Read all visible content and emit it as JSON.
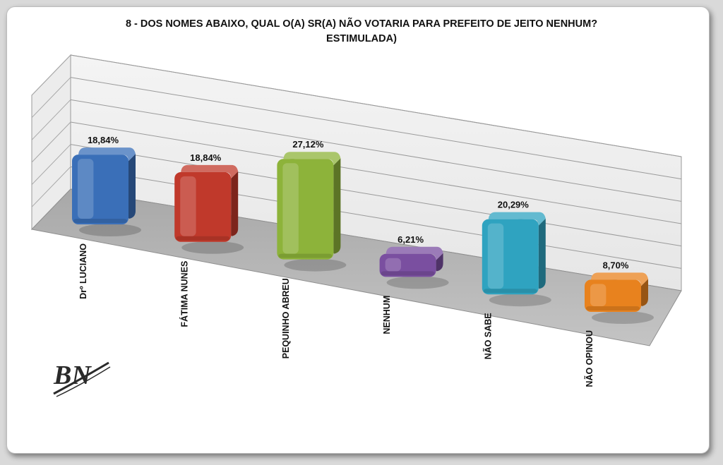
{
  "chart_data": {
    "type": "bar",
    "title": "8 -  DOS NOMES ABAIXO, QUAL O(A) SR(A) NÃO VOTARIA PARA PREFEITO DE JEITO NENHUM?",
    "subtitle": "ESTIMULADA)",
    "xlabel": "",
    "ylabel": "",
    "ylim": [
      0,
      30
    ],
    "grid": true,
    "categories": [
      "Drº LUCIANO",
      "FÁTIMA NUNES",
      "PEQUINHO ABREU",
      "NENHUM",
      "NÃO SABE",
      "NÃO OPINOU"
    ],
    "values": [
      18.84,
      18.84,
      27.12,
      6.21,
      20.29,
      8.7
    ],
    "value_labels": [
      "18,84%",
      "18,84%",
      "27,12%",
      "6,21%",
      "20,29%",
      "8,70%"
    ],
    "colors": [
      "#3a6fb8",
      "#c0392b",
      "#8db33a",
      "#7a4fa0",
      "#2fa3c0",
      "#e8821e"
    ]
  },
  "logo": {
    "text": "BN"
  }
}
